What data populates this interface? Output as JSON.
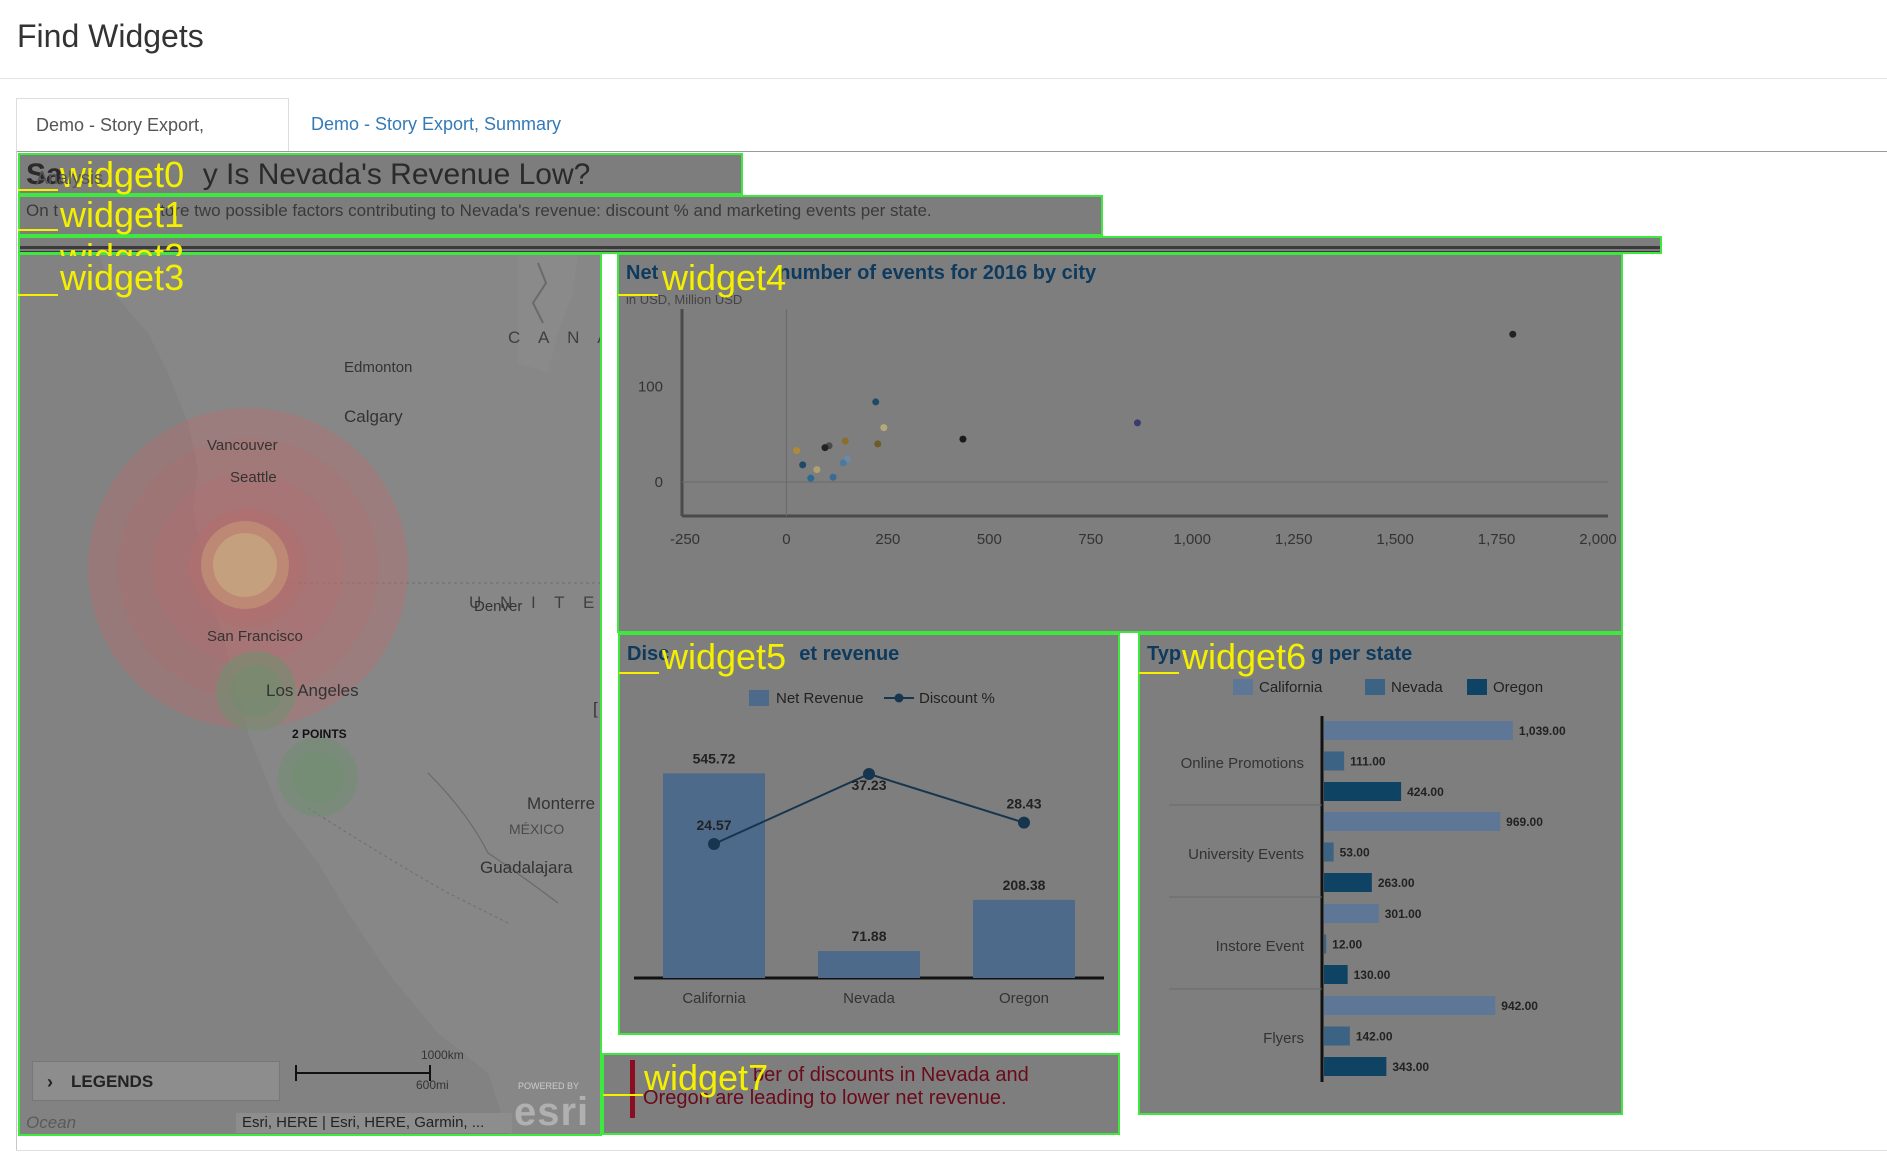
{
  "header": {
    "title": "Find Widgets"
  },
  "tabs": [
    {
      "label": "Demo - Story Export, Analysis"
    },
    {
      "label": "Demo - Story Export, Summary"
    }
  ],
  "colors": {
    "widget_outline": "#3ee83e",
    "widget_tag": "#f4f000",
    "chart_title": "#0e3a5e",
    "insight_accent": "#8a0d22",
    "overlay_gray": "#7d7d7d"
  },
  "widgets": {
    "w0": "widget0",
    "w1": "widget1",
    "w2": "widget2",
    "w3": "widget3",
    "w4": "widget4",
    "w5": "widget5",
    "w6": "widget6",
    "w7": "widget7"
  },
  "story": {
    "title_prefix": "Sa",
    "title_visible": "y Is Nevada's Revenue Low?",
    "subtitle_prefix": "On t",
    "subtitle_visible": "tore two possible factors contributing to Nevada's revenue: discount % and marketing events per state."
  },
  "map": {
    "labels": {
      "canada": "C A N A D",
      "edmonton": "Edmonton",
      "calgary": "Calgary",
      "vancouver": "Vancouver",
      "seattle": "Seattle",
      "united_states": "U N I T E D   S",
      "denver": "Denver",
      "san_francisco": "San Francisco",
      "los_angeles": "Los Angeles",
      "two_points": "2 POINTS",
      "monterrey": "Monterre",
      "mexico": "MÉXICO",
      "guadalajara": "Guadalajara",
      "bracket": "["
    },
    "legends_label": "LEGENDS",
    "scale_km": "1000km",
    "scale_mi": "600mi",
    "attribution": "Esri, HERE | Esri, HERE, Garmin, ...",
    "ocean": "Ocean",
    "esri_powered": "POWERED BY",
    "esri_logo": "esri",
    "chevron_icon": "chevron-right-icon"
  },
  "scatter": {
    "title_prefix": "Net",
    "title_visible": "number of events for 2016 by city",
    "subtitle": "in USD, Million USD"
  },
  "combo": {
    "title_prefix": "Disc",
    "title_visible": "et revenue",
    "legend": {
      "bar": "Net Revenue",
      "line": "Discount %"
    }
  },
  "hbar": {
    "title_prefix": "Typ",
    "title_visible": "g per state",
    "legend": [
      "California",
      "Nevada",
      "Oregon"
    ]
  },
  "insight": {
    "line1_visible": "ber of discounts in Nevada and",
    "line2_visible": "Oregon are leading to lower net revenue."
  },
  "chart_data": [
    {
      "type": "scatter",
      "x_ticks": [
        "-250",
        "0",
        "250",
        "500",
        "750",
        "1,000",
        "1,250",
        "1,500",
        "1,750",
        "2,000"
      ],
      "y_ticks": [
        "100",
        "0"
      ],
      "xlim": [
        -250,
        2000
      ],
      "ylim": [
        0,
        150
      ],
      "points": [
        {
          "x": 1790,
          "y": 155,
          "color": "#222222"
        },
        {
          "x": 865,
          "y": 62,
          "color": "#3b3b6e"
        },
        {
          "x": 435,
          "y": 45,
          "color": "#1a1a1a"
        },
        {
          "x": 220,
          "y": 84,
          "color": "#1e4a66"
        },
        {
          "x": 240,
          "y": 57,
          "color": "#b7a87a"
        },
        {
          "x": 225,
          "y": 40,
          "color": "#6e5a2a"
        },
        {
          "x": 145,
          "y": 43,
          "color": "#8a6e2a"
        },
        {
          "x": 105,
          "y": 38,
          "color": "#4b4b4b"
        },
        {
          "x": 95,
          "y": 36,
          "color": "#222222"
        },
        {
          "x": 25,
          "y": 33,
          "color": "#b08a3a"
        },
        {
          "x": 150,
          "y": 24,
          "color": "#6a8aa8"
        },
        {
          "x": 140,
          "y": 20,
          "color": "#4a7aa0"
        },
        {
          "x": 40,
          "y": 18,
          "color": "#1e4a66"
        },
        {
          "x": 75,
          "y": 13,
          "color": "#b0a070"
        },
        {
          "x": 60,
          "y": 4,
          "color": "#2a6a96"
        },
        {
          "x": 115,
          "y": 5,
          "color": "#3a6a96"
        }
      ]
    },
    {
      "type": "bar",
      "categories": [
        "California",
        "Nevada",
        "Oregon"
      ],
      "series": [
        {
          "name": "Net Revenue",
          "values": [
            545.72,
            71.88,
            208.38
          ]
        },
        {
          "name": "Discount %",
          "values": [
            24.57,
            37.23,
            28.43
          ]
        }
      ]
    },
    {
      "type": "bar",
      "orientation": "horizontal",
      "categories": [
        "Online Promotions",
        "University Events",
        "Instore Event",
        "Flyers"
      ],
      "series": [
        {
          "name": "California",
          "values": [
            1039,
            969,
            301,
            942
          ],
          "labels": [
            "1,039.00",
            "969.00",
            "301.00",
            "942.00"
          ]
        },
        {
          "name": "Nevada",
          "values": [
            111,
            53,
            12,
            142
          ],
          "labels": [
            "111.00",
            "53.00",
            "12.00",
            "142.00"
          ]
        },
        {
          "name": "Oregon",
          "values": [
            424,
            263,
            130,
            343
          ],
          "labels": [
            "424.00",
            "263.00",
            "130.00",
            "343.00"
          ]
        }
      ],
      "xlim": [
        0,
        1100
      ]
    }
  ]
}
